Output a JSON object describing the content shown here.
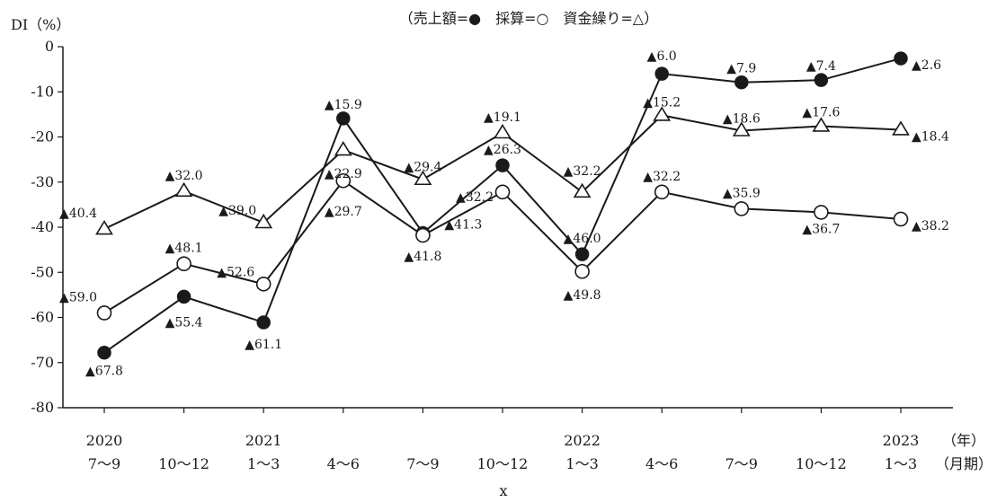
{
  "chart_data": {
    "type": "line",
    "ylabel": "DI（%）",
    "xlabel": "x",
    "legend_text": "（売上額=●　採算=○　資金繰り=△）",
    "legend_position": "top-center",
    "x_unit_top": "（年）",
    "x_unit_bottom": "（月期）",
    "ylim": [
      -80,
      0
    ],
    "yticks": [
      "0",
      "-10",
      "-20",
      "-30",
      "-40",
      "-50",
      "-60",
      "-70",
      "-80"
    ],
    "grid": false,
    "categories": [
      {
        "year": "2020",
        "period": "7～9"
      },
      {
        "year": "",
        "period": "10～12"
      },
      {
        "year": "2021",
        "period": "1～3"
      },
      {
        "year": "",
        "period": "4～6"
      },
      {
        "year": "",
        "period": "7～9"
      },
      {
        "year": "",
        "period": "10～12"
      },
      {
        "year": "2022",
        "period": "1～3"
      },
      {
        "year": "",
        "period": "4～6"
      },
      {
        "year": "",
        "period": "7～9"
      },
      {
        "year": "",
        "period": "10～12"
      },
      {
        "year": "2023",
        "period": "1～3"
      }
    ],
    "series": [
      {
        "name": "売上額",
        "marker": "filled-circle",
        "values": [
          -67.8,
          -55.4,
          -61.1,
          -15.9,
          -41.3,
          -26.3,
          -46.0,
          -6.0,
          -7.9,
          -7.4,
          -2.6
        ],
        "labels": [
          "▲67.8",
          "▲55.4",
          "▲61.1",
          "▲15.9",
          "▲41.3",
          "▲26.3",
          "▲46.0",
          "▲6.0",
          "▲7.9",
          "▲7.4",
          "▲2.6"
        ]
      },
      {
        "name": "採算",
        "marker": "open-circle",
        "values": [
          -59.0,
          -48.1,
          -52.6,
          -29.7,
          -41.8,
          -32.2,
          -49.8,
          -32.2,
          -35.9,
          -36.7,
          -38.2
        ],
        "labels": [
          "▲59.0",
          "▲48.1",
          "▲52.6",
          "▲29.7",
          "▲41.8",
          "▲32.2",
          "▲49.8",
          "▲32.2",
          "▲35.9",
          "▲36.7",
          "▲38.2"
        ]
      },
      {
        "name": "資金繰り",
        "marker": "open-triangle",
        "values": [
          -40.4,
          -32.0,
          -39.0,
          -22.9,
          -29.4,
          -19.1,
          -32.2,
          -15.2,
          -18.6,
          -17.6,
          -18.4
        ],
        "labels": [
          "▲40.4",
          "▲32.0",
          "▲39.0",
          "▲22.9",
          "▲29.4",
          "▲19.1",
          "▲32.2",
          "▲15.2",
          "▲18.6",
          "▲17.6",
          "▲18.4"
        ]
      }
    ]
  }
}
